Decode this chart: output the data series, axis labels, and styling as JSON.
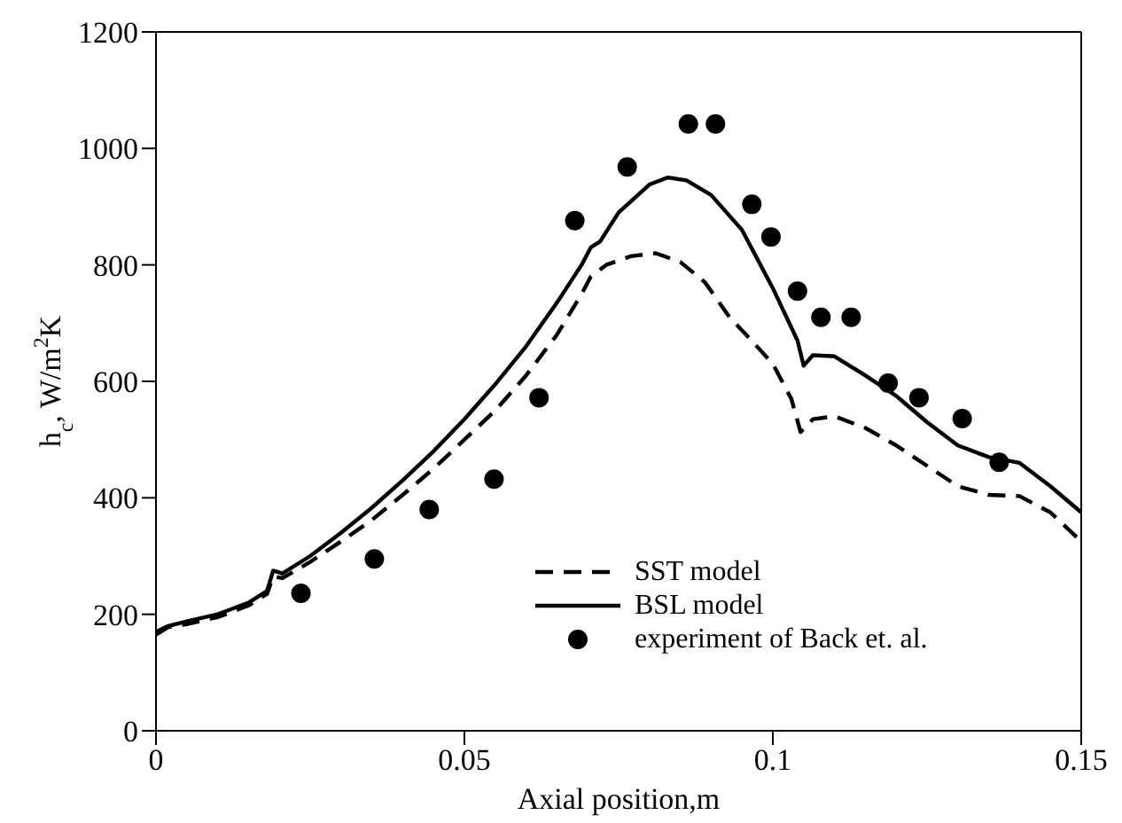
{
  "chart_data": {
    "type": "line",
    "xlabel": "Axial position,m",
    "ylabel": "h$_{c}$, W/m$^{2}$K",
    "xlim": [
      0,
      0.15
    ],
    "xticks": [
      0,
      0.05,
      0.1,
      0.15
    ],
    "ylim": [
      0,
      1200
    ],
    "yticks": [
      0,
      200,
      400,
      600,
      800,
      1000,
      1200
    ],
    "grid": false,
    "legend": "bottom",
    "marker": "none",
    "series": [
      {
        "name": "SST model",
        "color": "#000000",
        "line_style": "dashed",
        "x": [
          0,
          0.002,
          0.005,
          0.01,
          0.015,
          0.018,
          0.019,
          0.0205,
          0.025,
          0.03,
          0.035,
          0.04,
          0.045,
          0.05,
          0.055,
          0.06,
          0.065,
          0.069,
          0.0705,
          0.073,
          0.077,
          0.081,
          0.085,
          0.089,
          0.093,
          0.097,
          0.1,
          0.103,
          0.1045,
          0.1065,
          0.11,
          0.115,
          0.12,
          0.125,
          0.13,
          0.135,
          0.14,
          0.145,
          0.15
        ],
        "values": [
          165,
          178,
          183,
          195,
          215,
          235,
          265,
          262,
          290,
          325,
          362,
          405,
          450,
          500,
          550,
          610,
          680,
          750,
          780,
          800,
          815,
          820,
          805,
          770,
          710,
          665,
          630,
          570,
          513,
          535,
          540,
          520,
          490,
          455,
          420,
          405,
          403,
          375,
          325
        ]
      },
      {
        "name": "BSL model",
        "color": "#000000",
        "line_style": "solid",
        "x": [
          0,
          0.002,
          0.005,
          0.01,
          0.015,
          0.018,
          0.019,
          0.0205,
          0.025,
          0.03,
          0.035,
          0.04,
          0.045,
          0.05,
          0.055,
          0.06,
          0.065,
          0.069,
          0.0705,
          0.072,
          0.075,
          0.08,
          0.083,
          0.086,
          0.09,
          0.095,
          0.1,
          0.104,
          0.105,
          0.1065,
          0.11,
          0.115,
          0.12,
          0.125,
          0.13,
          0.135,
          0.14,
          0.145,
          0.15
        ],
        "values": [
          170,
          180,
          188,
          200,
          220,
          240,
          275,
          270,
          300,
          340,
          383,
          430,
          480,
          535,
          595,
          660,
          735,
          800,
          830,
          840,
          890,
          938,
          950,
          945,
          920,
          860,
          760,
          670,
          627,
          645,
          643,
          610,
          575,
          530,
          490,
          470,
          460,
          420,
          375
        ]
      },
      {
        "name": "experiment of Back et. al.",
        "type": "scatter",
        "marker": "circle",
        "color": "#000000",
        "x": [
          0.0235,
          0.0354,
          0.0443,
          0.0548,
          0.0621,
          0.0679,
          0.0764,
          0.0863,
          0.0907,
          0.0966,
          0.0997,
          0.104,
          0.1078,
          0.1127,
          0.1187,
          0.1237,
          0.1307,
          0.1367
        ],
        "values": [
          236,
          295,
          380,
          432,
          572,
          876,
          968,
          1042,
          1042,
          904,
          848,
          755,
          710,
          710,
          597,
          572,
          536,
          461
        ]
      }
    ]
  }
}
